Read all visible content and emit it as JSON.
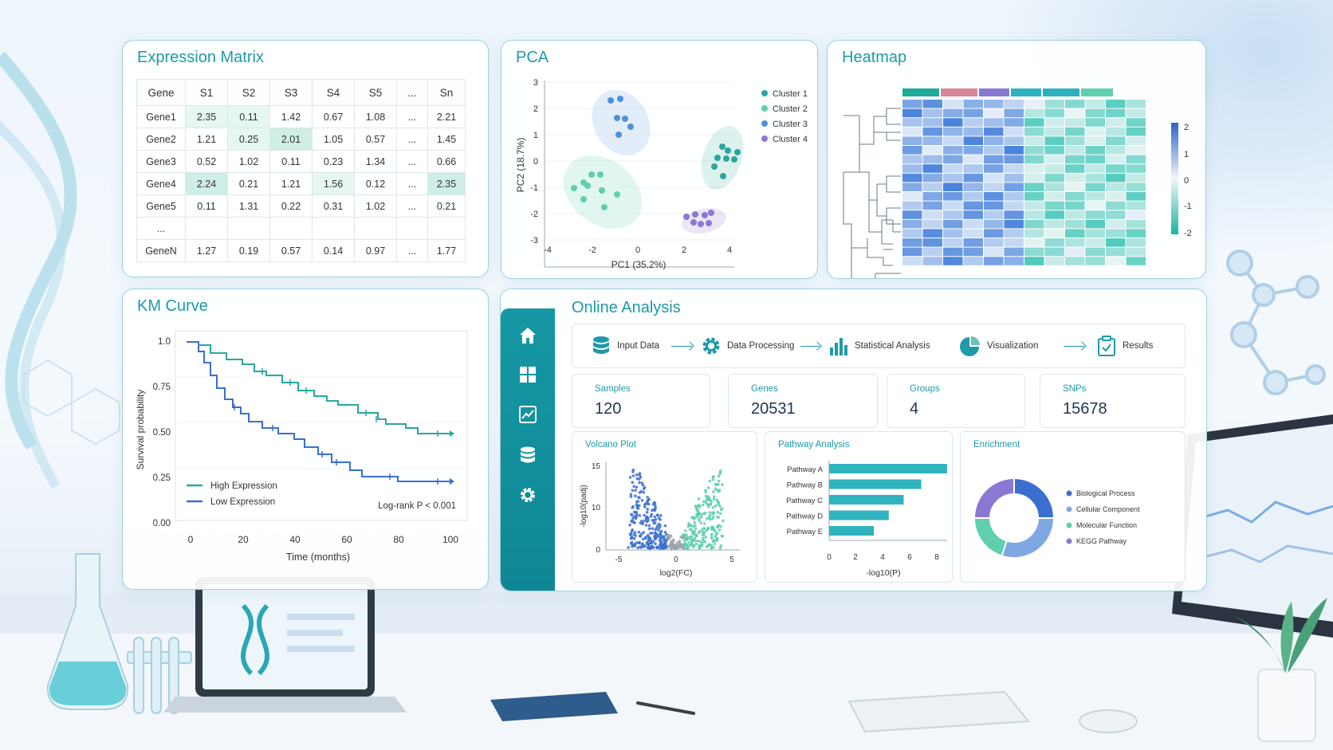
{
  "colors": {
    "teal": "#1e9aa9",
    "high_expression": "#27a9a0",
    "low_expression": "#3a6fcf",
    "cluster1": "#2ba69c",
    "cluster2": "#5fcfae",
    "cluster3": "#4f8fdc",
    "cluster4": "#8b78d3"
  },
  "expression_matrix": {
    "title": "Expression Matrix",
    "columns": [
      "Gene",
      "S1",
      "S2",
      "S3",
      "S4",
      "S5",
      "...",
      "Sn"
    ],
    "rows": [
      {
        "gene": "Gene1",
        "values": [
          "2.35",
          "0.11",
          "1.42",
          "0.67",
          "1.08",
          "...",
          "2.21"
        ]
      },
      {
        "gene": "Gene2",
        "values": [
          "1.21",
          "0.25",
          "2.01",
          "1.05",
          "0.57",
          "...",
          "1.45"
        ]
      },
      {
        "gene": "Gene3",
        "values": [
          "0.52",
          "1.02",
          "0.11",
          "0.23",
          "1.34",
          "...",
          "0.66"
        ]
      },
      {
        "gene": "Gene4",
        "values": [
          "2.24",
          "0.21",
          "1.21",
          "1.56",
          "0.12",
          "...",
          "2.35"
        ]
      },
      {
        "gene": "Gene5",
        "values": [
          "0.11",
          "1.31",
          "0.22",
          "0.31",
          "1.02",
          "...",
          "0.21"
        ]
      },
      {
        "gene": "...",
        "values": [
          "",
          "",
          "",
          "",
          "",
          "",
          ""
        ]
      },
      {
        "gene": "GeneN",
        "values": [
          "1.27",
          "0.19",
          "0.57",
          "0.14",
          "0.97",
          "...",
          "1.77"
        ]
      }
    ]
  },
  "pca": {
    "title": "PCA",
    "xlabel": "PC1 (35.2%)",
    "ylabel": "PC2 (18.7%)",
    "x_ticks": [
      "-4",
      "-2",
      "0",
      "2",
      "4"
    ],
    "y_ticks": [
      "3",
      "2",
      "1",
      "0",
      "-1",
      "-2",
      "-3"
    ],
    "legend": [
      "Cluster 1",
      "Cluster 2",
      "Cluster 3",
      "Cluster 4"
    ]
  },
  "heatmap": {
    "title": "Heatmap",
    "scale_ticks": [
      "2",
      "1",
      "0",
      "-1",
      "-2"
    ]
  },
  "km_curve": {
    "title": "KM Curve",
    "xlabel": "Time (months)",
    "ylabel": "Survival probability",
    "x_ticks": [
      "0",
      "20",
      "40",
      "60",
      "80",
      "100"
    ],
    "y_ticks": [
      "1.0",
      "0.75",
      "0.50",
      "0.25",
      "0.00"
    ],
    "legend": [
      "High Expression",
      "Low Expression"
    ],
    "annotation": "Log-rank P < 0.001"
  },
  "online_analysis": {
    "title": "Online Analysis",
    "nav_icons": [
      "home-icon",
      "grid-icon",
      "chart-icon",
      "database-icon",
      "gear-icon"
    ],
    "pipeline": [
      "Input Data",
      "Data Processing",
      "Statistical Analysis",
      "Visualization",
      "Results"
    ],
    "stats": [
      {
        "label": "Samples",
        "value": "120"
      },
      {
        "label": "Genes",
        "value": "20531"
      },
      {
        "label": "Groups",
        "value": "4"
      },
      {
        "label": "SNPs",
        "value": "15678"
      }
    ],
    "volcano": {
      "title": "Volcano Plot",
      "xlabel": "log2(FC)",
      "ylabel": "-log10(padj)",
      "x_ticks": [
        "-5",
        "0",
        "5"
      ],
      "y_ticks": [
        "15",
        "10",
        "0"
      ]
    },
    "pathway": {
      "title": "Pathway Analysis",
      "xlabel": "-log10(P)",
      "x_ticks": [
        "0",
        "2",
        "4",
        "6",
        "8"
      ],
      "chart_data": {
        "type": "bar",
        "categories": [
          "Pathway A",
          "Pathway B",
          "Pathway C",
          "Pathway D",
          "Pathway E"
        ],
        "values": [
          8.7,
          6.8,
          5.5,
          4.4,
          3.3
        ],
        "xlim": [
          0,
          9
        ]
      }
    },
    "enrichment": {
      "title": "Enrichment",
      "legend": [
        "Biological Process",
        "Cellular Component",
        "Molecular Function",
        "KEGG Pathway"
      ],
      "chart_data": {
        "type": "pie",
        "categories": [
          "Biological Process",
          "Cellular Component",
          "Molecular Function",
          "KEGG Pathway"
        ],
        "values": [
          25,
          30,
          20,
          25
        ]
      }
    }
  }
}
